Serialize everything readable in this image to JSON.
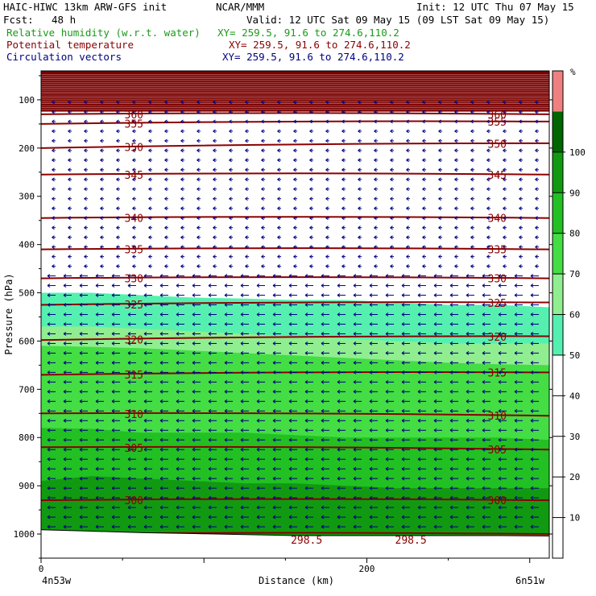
{
  "header": {
    "model": "HAIC-HIWC 13km ARW-GFS init",
    "org": "NCAR/MMM",
    "init": "Init: 12 UTC Thu 07 May 15",
    "fcst_label": "Fcst:",
    "fcst_value": "48 h",
    "valid": "Valid: 12 UTC Sat 09 May 15 (09 LST Sat 09 May 15)",
    "fields": [
      {
        "name": "Relative humidity (w.r.t. water)",
        "xy": "XY= 259.5, 91.6 to 274.6,110.2",
        "color": "#1a9a1a"
      },
      {
        "name": "Potential temperature",
        "xy": "XY= 259.5, 91.6 to 274.6,110.2",
        "color": "#8b0000"
      },
      {
        "name": "Circulation vectors",
        "xy": "XY= 259.5, 91.6 to 274.6,110.2",
        "color": "#000080"
      }
    ]
  },
  "chart_data": {
    "type": "heatmap",
    "title": "",
    "xlabel": "Distance (km)",
    "ylabel": "Pressure (hPa)",
    "x_ticks": [
      {
        "value": 0,
        "label": "0"
      },
      {
        "value": 200,
        "label": "200"
      }
    ],
    "x_range": [
      0,
      312
    ],
    "x_end_labels": {
      "left": "4n53w",
      "right": "6n51w"
    },
    "y_ticks": [
      100,
      200,
      300,
      400,
      500,
      600,
      700,
      800,
      900,
      1000
    ],
    "y_range_hpa": [
      1050,
      40
    ],
    "y_scale": "linear",
    "colorbar": {
      "unit": "%",
      "levels": [
        10,
        20,
        30,
        40,
        50,
        60,
        70,
        80,
        90,
        100
      ],
      "colors": [
        "#ffffff",
        "#ffffff",
        "#ffffff",
        "#ffffff",
        "#ffffff",
        "#55f0b0",
        "#90ee90",
        "#44dd44",
        "#22c022",
        "#119a11",
        "#006600",
        "#f08080"
      ]
    },
    "humidity_layers": [
      {
        "color": "#55f0b0",
        "top_hpa": [
          500,
          500,
          505,
          510,
          512,
          515,
          515,
          520,
          525,
          525,
          530
        ],
        "bottom": "surface"
      },
      {
        "color": "#90ee90",
        "top_hpa": [
          570,
          570,
          575,
          580,
          585,
          590,
          595,
          600,
          605,
          605,
          605
        ],
        "bottom": "surface"
      },
      {
        "color": "#44dd44",
        "top_hpa": [
          610,
          612,
          615,
          620,
          625,
          630,
          635,
          640,
          645,
          648,
          650
        ],
        "bottom": "surface"
      },
      {
        "color": "#22c022",
        "top_hpa": [
          780,
          782,
          790,
          790,
          790,
          795,
          800,
          800,
          800,
          800,
          805
        ],
        "bottom": "surface"
      },
      {
        "color": "#119a11",
        "top_hpa": [
          890,
          880,
          885,
          890,
          895,
          895,
          900,
          905,
          905,
          905,
          905
        ],
        "bottom": "surface"
      }
    ],
    "humidity_x_km": [
      0,
      31,
      62,
      94,
      125,
      156,
      187,
      218,
      250,
      281,
      312
    ],
    "theta_K": [
      {
        "value": 360,
        "label": "360",
        "p_left": 130,
        "p_right": 130
      },
      {
        "value": 355,
        "label": "355",
        "p_left": 150,
        "p_right": 145
      },
      {
        "value": 350,
        "label": "350",
        "p_left": 200,
        "p_right": 190
      },
      {
        "value": 345,
        "label": "345",
        "p_left": 255,
        "p_right": 255
      },
      {
        "value": 340,
        "label": "340",
        "p_left": 345,
        "p_right": 345
      },
      {
        "value": 335,
        "label": "335",
        "p_left": 410,
        "p_right": 410
      },
      {
        "value": 330,
        "label": "330",
        "p_left": 470,
        "p_right": 470
      },
      {
        "value": 325,
        "label": "325",
        "p_left": 525,
        "p_right": 520
      },
      {
        "value": 320,
        "label": "320",
        "p_left": 598,
        "p_right": 590
      },
      {
        "value": 315,
        "label": "315",
        "p_left": 670,
        "p_right": 665
      },
      {
        "value": 310,
        "label": "310",
        "p_left": 750,
        "p_right": 755
      },
      {
        "value": 305,
        "label": "305",
        "p_left": 820,
        "p_right": 825
      },
      {
        "value": 300,
        "label": "300",
        "p_left": 930,
        "p_right": 930
      },
      {
        "value": 298.5,
        "label": "298.5",
        "p_left": 1000,
        "p_right": 1000
      }
    ],
    "theta_298_labels_x_km": [
      163,
      227
    ],
    "surface_hpa": [
      992,
      995,
      998,
      1000,
      1002,
      1004,
      1004,
      1004,
      1004,
      1004,
      1005
    ],
    "wind_u_ms": -10,
    "legend": "right colorbar",
    "grid": false
  }
}
